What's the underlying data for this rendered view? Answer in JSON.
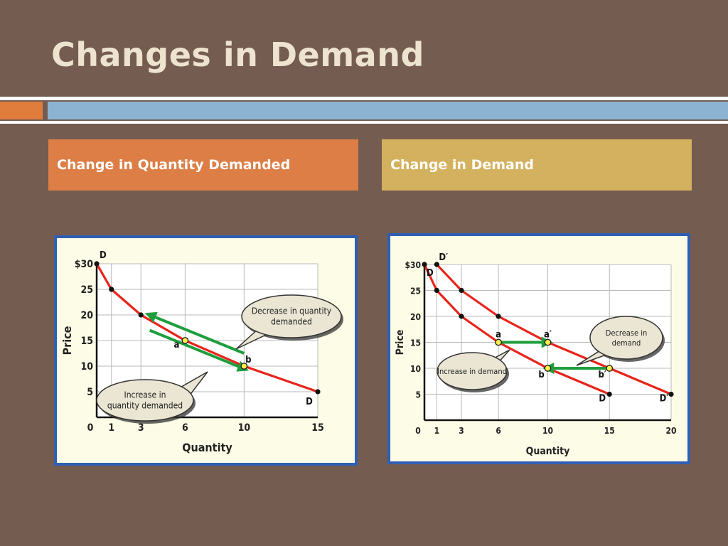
{
  "slide": {
    "title": "Changes in Demand",
    "left_header": "Change in Quantity Demanded",
    "right_header": "Change in Demand"
  },
  "colors": {
    "background": "#745c50",
    "title": "#ede3cf",
    "accent_orange": "#e07d3c",
    "accent_blue": "#8cb4d2",
    "left_header_bg": "#dc7e45",
    "right_header_bg": "#d4b15e",
    "chart_border": "#2f5fb3",
    "curve": "#e8241b",
    "arrow": "#1f9e3e",
    "highlight_point": "#fff04a"
  },
  "chart_data": [
    {
      "type": "line",
      "xlabel": "Quantity",
      "ylabel": "Price",
      "x_ticks": [
        "0",
        "1",
        "3",
        "6",
        "10",
        "15"
      ],
      "x_tick_values": [
        0,
        1,
        3,
        6,
        10,
        15
      ],
      "y_ticks": [
        "5",
        "10",
        "15",
        "20",
        "25",
        "$30"
      ],
      "y_tick_values": [
        5,
        10,
        15,
        20,
        25,
        30
      ],
      "xlim": [
        0,
        15
      ],
      "ylim": [
        0,
        30
      ],
      "grid": true,
      "series": [
        {
          "start_label": "D",
          "end_label": "D",
          "x": [
            0,
            1,
            3,
            6,
            10,
            15
          ],
          "y": [
            30,
            25,
            20,
            15,
            10,
            5
          ]
        }
      ],
      "highlighted_points": [
        {
          "label": "a",
          "x": 6,
          "y": 15
        },
        {
          "label": "b",
          "x": 10,
          "y": 10
        }
      ],
      "arrows": [
        {
          "from": [
            10,
            12.5
          ],
          "to": [
            3.6,
            20.0
          ]
        },
        {
          "from": [
            3.6,
            17.0
          ],
          "to": [
            10,
            9.5
          ]
        }
      ],
      "callouts": [
        {
          "text": "Decrease in quantity demanded",
          "lines": [
            "Decrease in quantity",
            "demanded"
          ]
        },
        {
          "text": "Increase in quantity demanded",
          "lines": [
            "Increase in",
            "quantity demanded"
          ]
        }
      ]
    },
    {
      "type": "line",
      "xlabel": "Quantity",
      "ylabel": "Price",
      "x_ticks": [
        "0",
        "1",
        "3",
        "6",
        "10",
        "15",
        "20"
      ],
      "x_tick_values": [
        0,
        1,
        3,
        6,
        10,
        15,
        20
      ],
      "y_ticks": [
        "5",
        "10",
        "15",
        "20",
        "25",
        "$30"
      ],
      "y_tick_values": [
        5,
        10,
        15,
        20,
        25,
        30
      ],
      "xlim": [
        0,
        20
      ],
      "ylim": [
        0,
        30
      ],
      "grid": true,
      "series": [
        {
          "start_label": "D",
          "end_label": "D",
          "x": [
            0,
            1,
            3,
            6,
            10,
            15
          ],
          "y": [
            30,
            25,
            20,
            15,
            10,
            5
          ]
        },
        {
          "start_label": "D′",
          "end_label": "D′",
          "x": [
            1,
            3,
            6,
            10,
            15,
            20
          ],
          "y": [
            30,
            25,
            20,
            15,
            10,
            5
          ]
        }
      ],
      "highlighted_points": [
        {
          "label": "a",
          "x": 6,
          "y": 15
        },
        {
          "label": "a′",
          "x": 10,
          "y": 15
        },
        {
          "label": "b",
          "x": 10,
          "y": 10
        },
        {
          "label": "b′",
          "x": 15,
          "y": 10
        }
      ],
      "arrows": [
        {
          "from": [
            6,
            15
          ],
          "to": [
            10,
            15
          ]
        },
        {
          "from": [
            15,
            10
          ],
          "to": [
            10,
            10
          ]
        }
      ],
      "callouts": [
        {
          "text": "Increase in demand",
          "lines": [
            "Increase in demand"
          ]
        },
        {
          "text": "Decrease in demand",
          "lines": [
            "Decrease in",
            "demand"
          ]
        }
      ]
    }
  ]
}
